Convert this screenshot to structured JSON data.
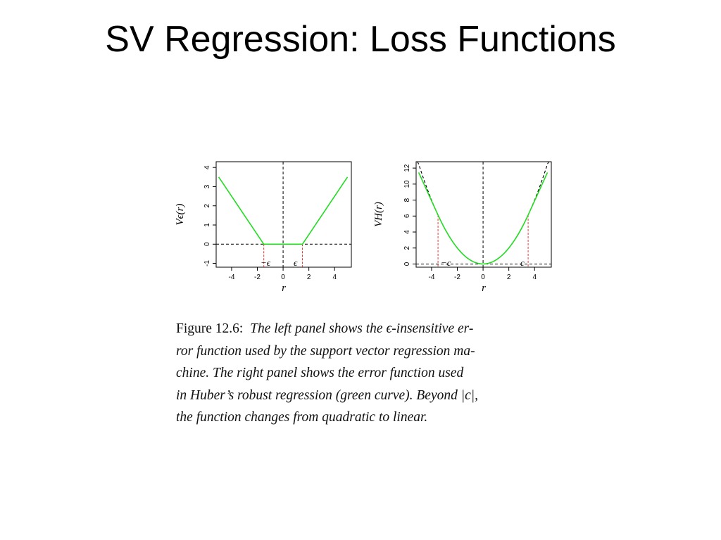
{
  "slide": {
    "title": "SV Regression: Loss Functions"
  },
  "caption": {
    "label": "Figure 12.6:",
    "lines": [
      "The left panel shows the ϵ-insensitive er-",
      "ror function used by the support vector regression ma-",
      "chine.  The right panel shows the error function used",
      "in Huber’s robust regression (green curve).  Beyond |c|,",
      "the function changes from quadratic to linear."
    ]
  },
  "chart_data": [
    {
      "type": "line",
      "xlabel": "r",
      "ylabel": "Vϵ(r)",
      "xlim": [
        -5.2,
        5.3
      ],
      "ylim": [
        -1.2,
        4.3
      ],
      "xticks": [
        "-4",
        "-2",
        "0",
        "2",
        "4"
      ],
      "yticks": [
        "-1",
        "0",
        "1",
        "2",
        "3",
        "4"
      ],
      "annotations": [
        "−ϵ",
        "ϵ"
      ],
      "epsilon": 1.5,
      "series": [
        {
          "color": "#22dd22",
          "x": [
            -5,
            -1.5,
            1.5,
            5
          ],
          "y": [
            3.5,
            0,
            0,
            3.5
          ]
        }
      ],
      "reference_lines": {
        "vertical_dashed_x": 0,
        "horizontal_dashed_y": 0,
        "red_dashed_x": [
          -1.5,
          1.5
        ]
      }
    },
    {
      "type": "line",
      "xlabel": "r",
      "ylabel": "VH(r)",
      "xlim": [
        -5.2,
        5.3
      ],
      "ylim": [
        -0.4,
        12.8
      ],
      "xticks": [
        "-4",
        "-2",
        "0",
        "2",
        "4"
      ],
      "yticks": [
        "0",
        "2",
        "4",
        "6",
        "8",
        "10",
        "12"
      ],
      "annotations": [
        "−c",
        "c"
      ],
      "c": 3.5,
      "series": [
        {
          "color": "#22dd22",
          "function": "huber",
          "x_range": [
            -5,
            5
          ],
          "y_at_edges": 11.25
        },
        {
          "color": "#000000",
          "dashed": true,
          "function": "r^2/2",
          "x_range": [
            -5.1,
            5.1
          ]
        }
      ],
      "reference_lines": {
        "vertical_dashed_x": 0,
        "horizontal_dashed_y": 0,
        "red_dashed_x": [
          -3.5,
          3.5
        ]
      }
    }
  ]
}
